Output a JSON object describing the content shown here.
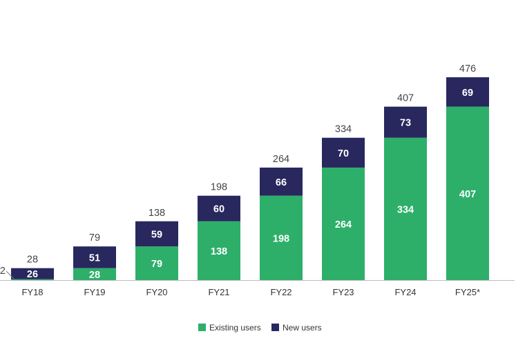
{
  "chart_data": {
    "type": "bar",
    "stacked": true,
    "title": "",
    "xlabel": "",
    "ylabel": "",
    "categories": [
      "FY18",
      "FY19",
      "FY20",
      "FY21",
      "FY22",
      "FY23",
      "FY24",
      "FY25*"
    ],
    "series": [
      {
        "name": "Existing users",
        "color": "#2daf6a",
        "values": [
          2,
          28,
          79,
          138,
          198,
          264,
          334,
          407
        ]
      },
      {
        "name": "New users",
        "color": "#28285f",
        "values": [
          26,
          51,
          59,
          60,
          66,
          70,
          73,
          69
        ]
      }
    ],
    "totals": [
      28,
      79,
      138,
      198,
      264,
      334,
      407,
      476
    ],
    "ylim": [
      0,
      500
    ],
    "grid": false,
    "legend": "bottom-center"
  }
}
